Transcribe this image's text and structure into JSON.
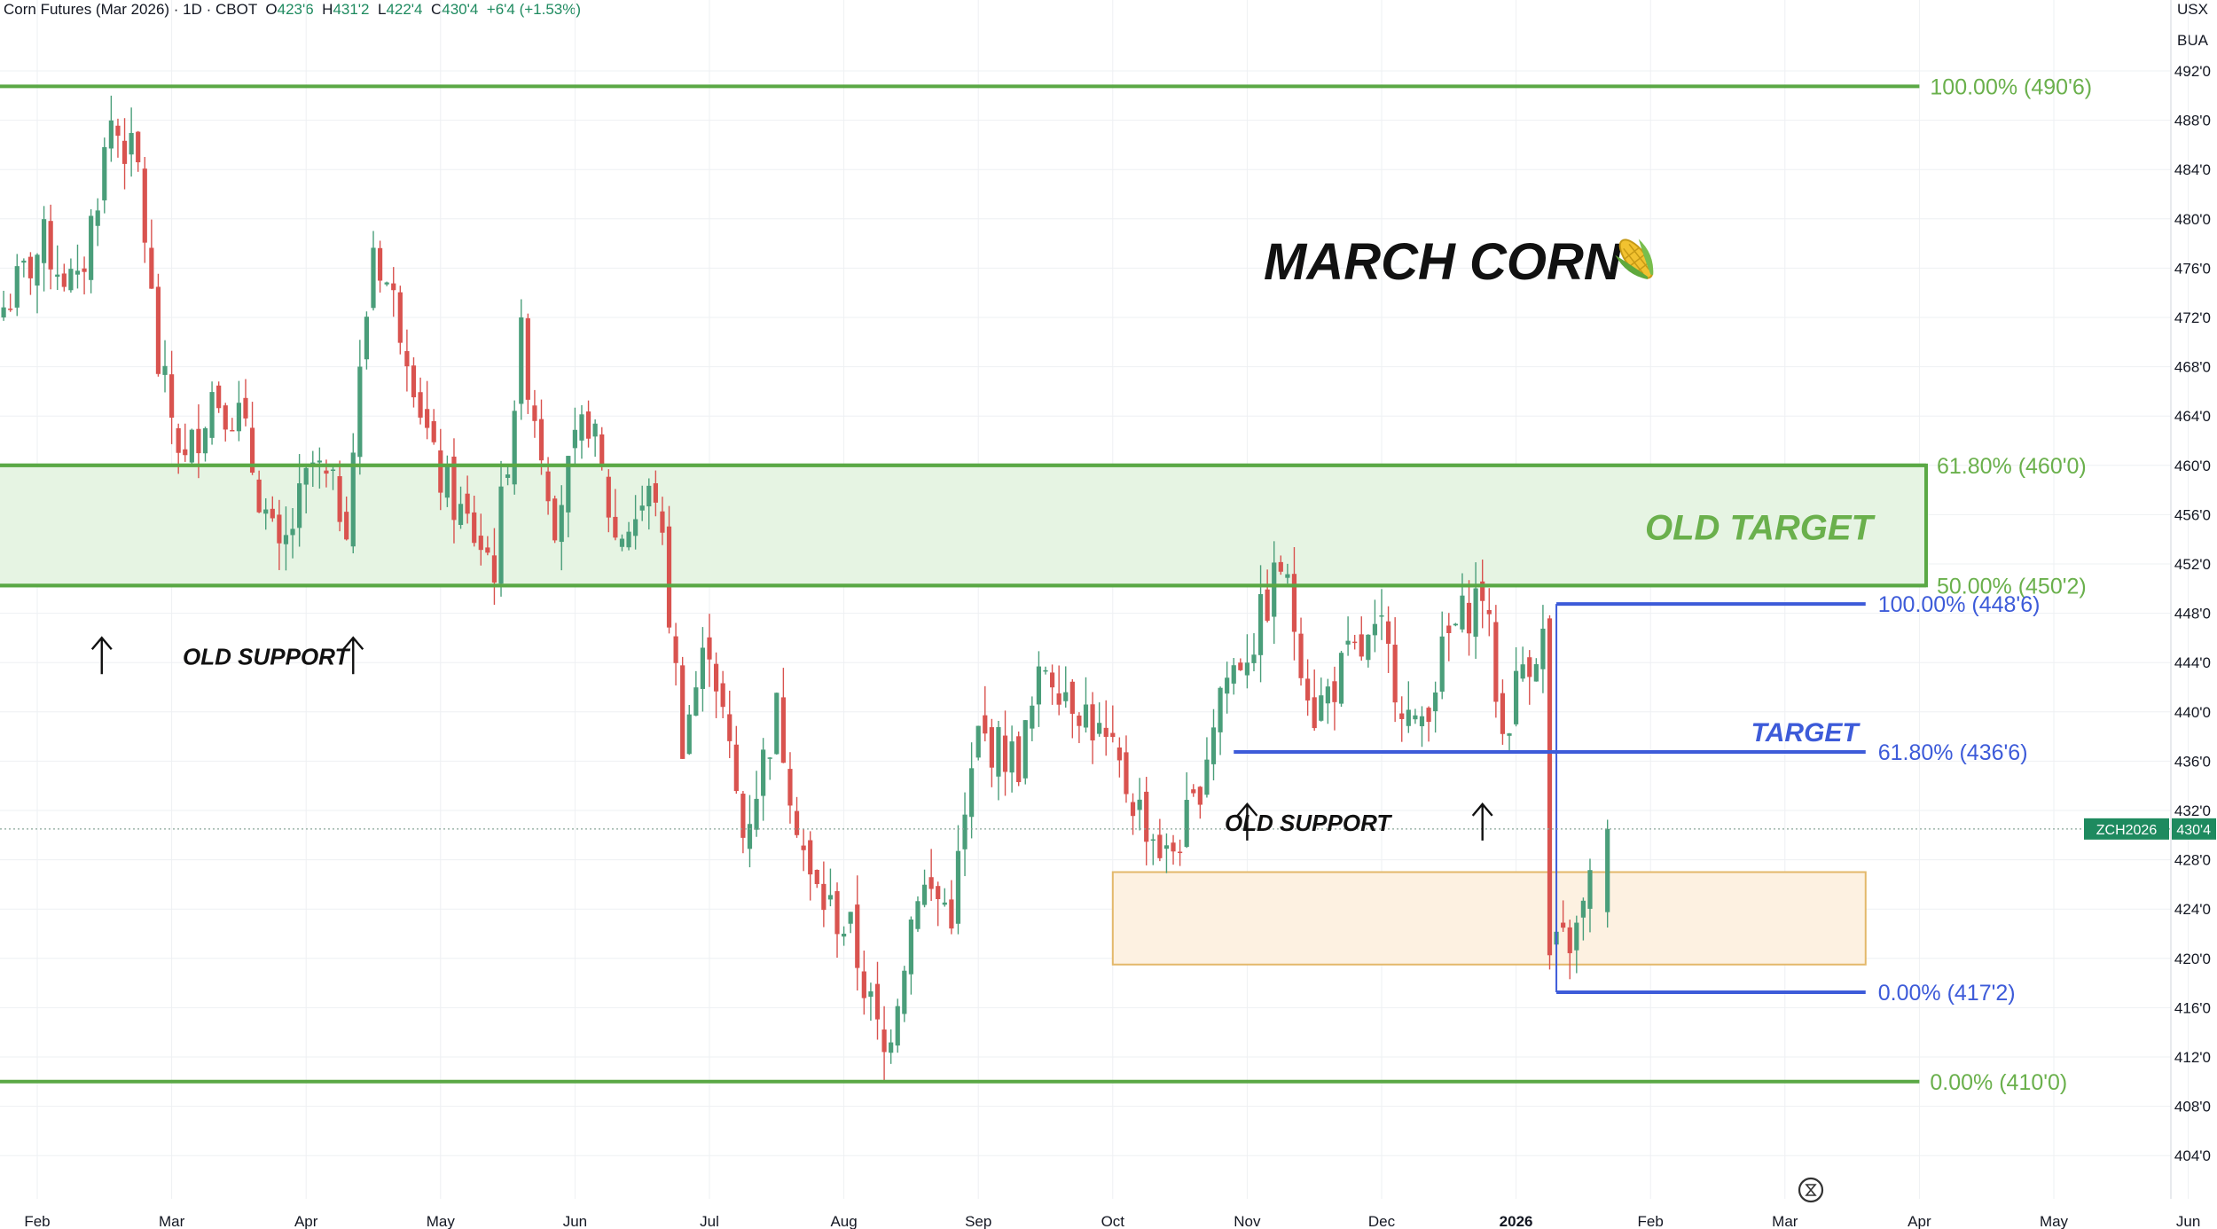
{
  "header": {
    "symbol_text": "Corn Futures (Mar 2026) · 1D · CBOT",
    "open_label": "O",
    "open": "423'6",
    "high_label": "H",
    "high": "431'2",
    "low_label": "L",
    "low": "422'4",
    "close_label": "C",
    "close": "430'4",
    "change": "+6'4 (+1.53%)"
  },
  "axis_units": [
    "USX",
    "BUA"
  ],
  "price_badge": {
    "symbol": "ZCH2026",
    "price": "430'4",
    "color": "#1e8a5f"
  },
  "colors": {
    "up": "#4a9e7a",
    "down": "#d9534f",
    "green_level": "#5aa845",
    "blue_level": "#3d5bd9",
    "zone_fill": "#e6f4e3",
    "orange_zone_fill": "#fdf1e1",
    "orange_zone_border": "#e3b86a"
  },
  "chart_data": {
    "type": "candlestick",
    "title": "MARCH CORN",
    "title_icon": "corn-icon",
    "y_range": [
      402,
      494
    ],
    "y_ticks": [
      {
        "v": 492,
        "label": "492'0"
      },
      {
        "v": 488,
        "label": "488'0"
      },
      {
        "v": 484,
        "label": "484'0"
      },
      {
        "v": 480,
        "label": "480'0"
      },
      {
        "v": 476,
        "label": "476'0"
      },
      {
        "v": 472,
        "label": "472'0"
      },
      {
        "v": 468,
        "label": "468'0"
      },
      {
        "v": 464,
        "label": "464'0"
      },
      {
        "v": 460,
        "label": "460'0"
      },
      {
        "v": 456,
        "label": "456'0"
      },
      {
        "v": 452,
        "label": "452'0"
      },
      {
        "v": 448,
        "label": "448'0"
      },
      {
        "v": 444,
        "label": "444'0"
      },
      {
        "v": 440,
        "label": "440'0"
      },
      {
        "v": 436,
        "label": "436'0"
      },
      {
        "v": 432,
        "label": "432'0"
      },
      {
        "v": 428,
        "label": "428'0"
      },
      {
        "v": 424,
        "label": "424'0"
      },
      {
        "v": 420,
        "label": "420'0"
      },
      {
        "v": 416,
        "label": "416'0"
      },
      {
        "v": 412,
        "label": "412'0"
      },
      {
        "v": 408,
        "label": "408'0"
      },
      {
        "v": 404,
        "label": "404'0"
      }
    ],
    "x_range_months": [
      0,
      16.7
    ],
    "x_ticks": [
      {
        "m": 0,
        "label": "Feb"
      },
      {
        "m": 1,
        "label": "Mar"
      },
      {
        "m": 2,
        "label": "Apr"
      },
      {
        "m": 3,
        "label": "May"
      },
      {
        "m": 4,
        "label": "Jun"
      },
      {
        "m": 5,
        "label": "Jul"
      },
      {
        "m": 6,
        "label": "Aug"
      },
      {
        "m": 7,
        "label": "Sep"
      },
      {
        "m": 8,
        "label": "Oct"
      },
      {
        "m": 9,
        "label": "Nov"
      },
      {
        "m": 10,
        "label": "Dec"
      },
      {
        "m": 11,
        "label": "2026",
        "bold": true
      },
      {
        "m": 12,
        "label": "Feb"
      },
      {
        "m": 13,
        "label": "Mar"
      },
      {
        "m": 14,
        "label": "Apr"
      },
      {
        "m": 15,
        "label": "May"
      },
      {
        "m": 16,
        "label": "Jun"
      }
    ],
    "anchors": [
      {
        "m": -0.25,
        "p": 472
      },
      {
        "m": 0.1,
        "p": 478
      },
      {
        "m": 0.35,
        "p": 474
      },
      {
        "m": 0.6,
        "p": 488
      },
      {
        "m": 0.8,
        "p": 484
      },
      {
        "m": 0.95,
        "p": 468
      },
      {
        "m": 1.15,
        "p": 460
      },
      {
        "m": 1.35,
        "p": 466
      },
      {
        "m": 1.55,
        "p": 464
      },
      {
        "m": 1.85,
        "p": 452
      },
      {
        "m": 2.1,
        "p": 460
      },
      {
        "m": 2.35,
        "p": 456
      },
      {
        "m": 2.55,
        "p": 478
      },
      {
        "m": 2.8,
        "p": 470
      },
      {
        "m": 3.0,
        "p": 460
      },
      {
        "m": 3.2,
        "p": 456
      },
      {
        "m": 3.45,
        "p": 452
      },
      {
        "m": 3.65,
        "p": 470
      },
      {
        "m": 3.9,
        "p": 456
      },
      {
        "m": 4.15,
        "p": 464
      },
      {
        "m": 4.35,
        "p": 454
      },
      {
        "m": 4.65,
        "p": 458
      },
      {
        "m": 4.85,
        "p": 438
      },
      {
        "m": 5.05,
        "p": 446
      },
      {
        "m": 5.3,
        "p": 430
      },
      {
        "m": 5.55,
        "p": 440
      },
      {
        "m": 5.8,
        "p": 426
      },
      {
        "m": 6.1,
        "p": 422
      },
      {
        "m": 6.35,
        "p": 412
      },
      {
        "m": 6.6,
        "p": 426
      },
      {
        "m": 6.85,
        "p": 424
      },
      {
        "m": 7.05,
        "p": 438
      },
      {
        "m": 7.35,
        "p": 436
      },
      {
        "m": 7.55,
        "p": 444
      },
      {
        "m": 7.85,
        "p": 440
      },
      {
        "m": 8.05,
        "p": 436
      },
      {
        "m": 8.25,
        "p": 432
      },
      {
        "m": 8.45,
        "p": 428
      },
      {
        "m": 8.65,
        "p": 432
      },
      {
        "m": 8.85,
        "p": 442
      },
      {
        "m": 9.1,
        "p": 446
      },
      {
        "m": 9.3,
        "p": 452
      },
      {
        "m": 9.55,
        "p": 440
      },
      {
        "m": 9.8,
        "p": 444
      },
      {
        "m": 10.05,
        "p": 446
      },
      {
        "m": 10.3,
        "p": 438
      },
      {
        "m": 10.55,
        "p": 446
      },
      {
        "m": 10.8,
        "p": 450
      },
      {
        "m": 10.95,
        "p": 438
      },
      {
        "m": 11.1,
        "p": 444
      },
      {
        "m": 11.25,
        "p": 446
      },
      {
        "m": 11.3,
        "p": 420
      },
      {
        "m": 11.5,
        "p": 422
      },
      {
        "m": 11.6,
        "p": 426
      }
    ],
    "last_candle": {
      "m": 11.68,
      "o": 423.75,
      "h": 431.25,
      "l": 422.5,
      "c": 430.5
    },
    "old_target_zone": {
      "from_m": -0.35,
      "to_m": 14.05,
      "top": 460.0,
      "bottom": 450.25,
      "label": "OLD TARGET"
    },
    "green_fib": [
      {
        "price": 490.75,
        "label": "100.00% (490'6)",
        "from_m": -0.35,
        "to_m": 14.0
      },
      {
        "price": 460.0,
        "label": "61.80% (460'0)",
        "from_m": -0.35,
        "to_m": 14.05
      },
      {
        "price": 450.25,
        "label": "50.00% (450'2)",
        "from_m": -0.35,
        "to_m": 14.05
      },
      {
        "price": 410.0,
        "label": "0.00% (410'0)",
        "from_m": -0.35,
        "to_m": 14.0
      }
    ],
    "blue_fib": [
      {
        "price": 448.75,
        "label": "100.00% (448'6)",
        "from_m": 11.3,
        "to_m": 13.6
      },
      {
        "price": 436.75,
        "label": "61.80% (436'6)",
        "from_m": 8.9,
        "to_m": 13.6
      },
      {
        "price": 417.25,
        "label": "0.00% (417'2)",
        "from_m": 11.3,
        "to_m": 13.6
      }
    ],
    "target_label": "TARGET",
    "orange_zone": {
      "from_m": 8.0,
      "to_m": 13.6,
      "top": 427.0,
      "bottom": 419.5
    },
    "annotations": [
      {
        "text": "OLD SUPPORT",
        "m": 1.7,
        "p": 444.5,
        "arrows_m": [
          0.48,
          2.35
        ]
      },
      {
        "text": "OLD SUPPORT",
        "m": 9.45,
        "p": 431.0,
        "arrows_m": [
          9.0,
          10.75
        ]
      }
    ],
    "last_price": 430.5
  }
}
